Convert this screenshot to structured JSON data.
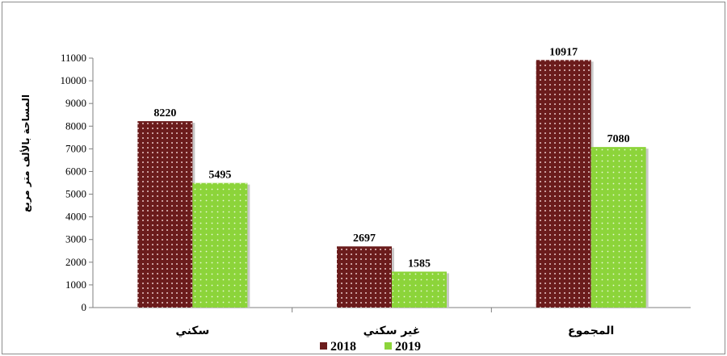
{
  "chart_data": {
    "type": "bar",
    "categories": [
      "سكني",
      "غير سكني",
      "المجموع"
    ],
    "series": [
      {
        "name": "2018",
        "values": [
          8220,
          2697,
          10917
        ],
        "color": "#6b1c1c"
      },
      {
        "name": "2019",
        "values": [
          5495,
          1585,
          7080
        ],
        "color": "#8cd43a"
      }
    ],
    "ylabel": "المساحة بالألف متر مربع",
    "ylim": [
      0,
      11000
    ],
    "yticks": [
      0,
      1000,
      2000,
      3000,
      4000,
      5000,
      6000,
      7000,
      8000,
      9000,
      10000,
      11000
    ],
    "grid": false,
    "legend_position": "bottom"
  }
}
